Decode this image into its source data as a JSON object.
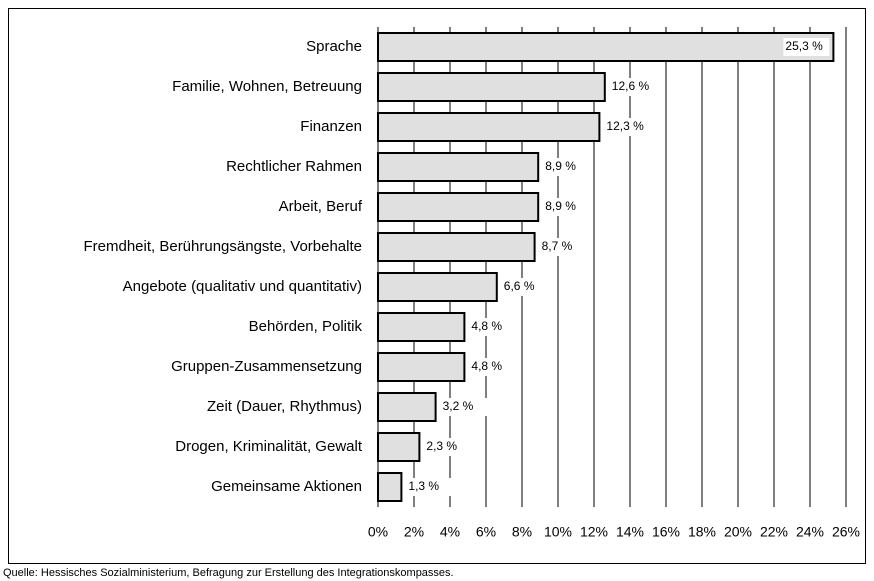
{
  "chart_data": {
    "type": "bar",
    "orientation": "horizontal",
    "categories": [
      "Sprache",
      "Familie, Wohnen, Betreuung",
      "Finanzen",
      "Rechtlicher Rahmen",
      "Arbeit, Beruf",
      "Fremdheit, Berührungsängste, Vorbehalte",
      "Angebote (qualitativ und quantitativ)",
      "Behörden, Politik",
      "Gruppen-Zusammensetzung",
      "Zeit (Dauer, Rhythmus)",
      "Drogen, Kriminalität, Gewalt",
      "Gemeinsame Aktionen"
    ],
    "values": [
      25.3,
      12.6,
      12.3,
      8.9,
      8.9,
      8.7,
      6.6,
      4.8,
      4.8,
      3.2,
      2.3,
      1.3
    ],
    "value_labels": [
      "25,3 %",
      "12,6 %",
      "12,3 %",
      "8,9 %",
      "8,9 %",
      "8,7 %",
      "6,6 %",
      "4,8 %",
      "4,8 %",
      "3,2 %",
      "2,3 %",
      "1,3 %"
    ],
    "color": "#e0e0e0",
    "xlim": [
      0,
      26
    ],
    "xticks": [
      {
        "value": 0,
        "label": "0%"
      },
      {
        "value": 2,
        "label": "2%"
      },
      {
        "value": 4,
        "label": "4%"
      },
      {
        "value": 6,
        "label": "6%"
      },
      {
        "value": 8,
        "label": "8%"
      },
      {
        "value": 10,
        "label": "10%"
      },
      {
        "value": 12,
        "label": "12%"
      },
      {
        "value": 14,
        "label": "14%"
      },
      {
        "value": 16,
        "label": "16%"
      },
      {
        "value": 18,
        "label": "18%"
      },
      {
        "value": 20,
        "label": "20%"
      },
      {
        "value": 22,
        "label": "22%"
      },
      {
        "value": 24,
        "label": "24%"
      },
      {
        "value": 26,
        "label": "26%"
      }
    ],
    "grid": true,
    "source": "Quelle: Hessisches Sozialministerium, Befragung zur Erstellung des Integrationskompasses."
  }
}
